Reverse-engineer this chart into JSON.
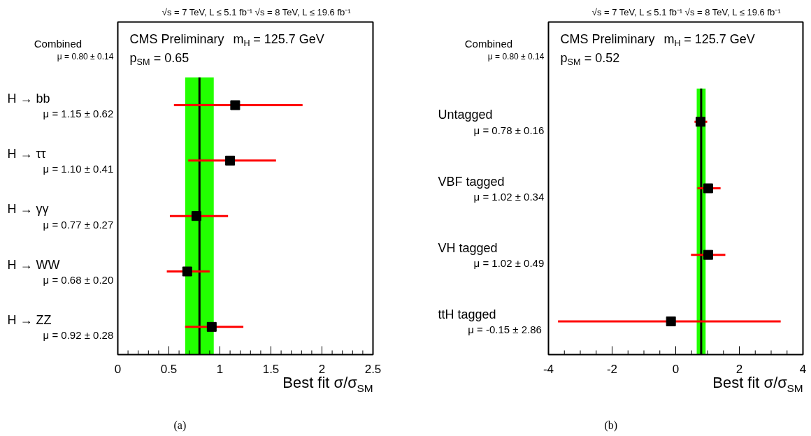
{
  "chart_data": [
    {
      "type": "scatter",
      "orientation": "horizontal",
      "title": "√s = 7 TeV, L ≤ 5.1 fb⁻¹  √s = 8 TeV, L ≤ 19.6 fb⁻¹",
      "xlabel": "Best fit σ/σ$_{SM}$",
      "categories": [
        "H → bb",
        "H → ττ",
        "H → γγ",
        "H → WW",
        "H → ZZ"
      ],
      "series": [
        {
          "color": "#000000",
          "values": [
            1.15,
            1.1,
            0.77,
            0.68,
            0.92
          ],
          "errors": [
            [
              0.55,
              1.81
            ],
            [
              0.69,
              1.55
            ],
            [
              0.51,
              1.08
            ],
            [
              0.48,
              0.9
            ],
            [
              0.66,
              1.23
            ]
          ],
          "value_labels": [
            "μ = 1.15 ± 0.62",
            "μ = 1.10 ± 0.41",
            "μ = 0.77 ± 0.27",
            "μ = 0.68 ± 0.20",
            "μ = 0.92 ± 0.28"
          ]
        }
      ],
      "marker": "square",
      "xlim": [
        0,
        2.5
      ],
      "xticks": [
        0,
        0.5,
        1,
        1.5,
        2,
        2.5
      ],
      "grid": false,
      "bands": [
        {
          "axis": "x",
          "from": 0.66,
          "to": 0.94,
          "color": "#22ff00"
        }
      ],
      "ref_lines": [
        {
          "axis": "x",
          "value": 0.8,
          "label": "Combined",
          "color": "#000000"
        }
      ],
      "annotations": [
        "μ = 0.80 ± 0.14",
        "CMS Preliminary",
        "m$_{H}$ = 125.7 GeV",
        "p$_{SM}$ = 0.65",
        "(a)"
      ]
    },
    {
      "type": "scatter",
      "orientation": "horizontal",
      "title": "√s = 7 TeV, L ≤ 5.1 fb⁻¹  √s = 8 TeV, L ≤ 19.6 fb⁻¹",
      "xlabel": "Best fit σ/σ$_{SM}$",
      "categories": [
        "Untagged",
        "VBF tagged",
        "VH tagged",
        "ttH tagged"
      ],
      "series": [
        {
          "color": "#000000",
          "values": [
            0.78,
            1.02,
            1.02,
            -0.15
          ],
          "errors": [
            [
              0.59,
              0.99
            ],
            [
              0.68,
              1.41
            ],
            [
              0.48,
              1.56
            ],
            [
              -3.7,
              3.3
            ]
          ],
          "value_labels": [
            "μ = 0.78 ± 0.16",
            "μ = 1.02 ± 0.34",
            "μ = 1.02 ± 0.49",
            "μ = -0.15 ± 2.86"
          ]
        }
      ],
      "marker": "square",
      "xlim": [
        -4,
        4
      ],
      "xticks": [
        -4,
        -2,
        0,
        2,
        4
      ],
      "grid": false,
      "bands": [
        {
          "axis": "x",
          "from": 0.66,
          "to": 0.94,
          "color": "#22ff00"
        }
      ],
      "ref_lines": [
        {
          "axis": "x",
          "value": 0.8,
          "label": "Combined",
          "color": "#000000"
        }
      ],
      "annotations": [
        "μ = 0.80 ± 0.14",
        "CMS Preliminary",
        "m$_{H}$ = 125.7 GeV",
        "p$_{SM}$ = 0.52",
        "(b)"
      ]
    }
  ]
}
